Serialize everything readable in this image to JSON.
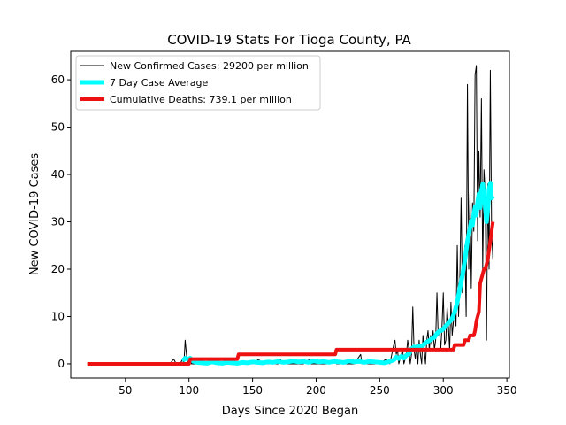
{
  "chart_data": {
    "type": "line",
    "title": "COVID-19 Stats For Tioga County, PA",
    "xlabel": "Days Since 2020 Began",
    "ylabel": "New COVID-19 Cases",
    "xlim": [
      7,
      352
    ],
    "ylim": [
      -3,
      66
    ],
    "xticks": [
      50,
      100,
      150,
      200,
      250,
      300,
      350
    ],
    "yticks": [
      0,
      10,
      20,
      30,
      40,
      50,
      60
    ],
    "grid": false,
    "legend_position": "top-left",
    "series": [
      {
        "name": "New Confirmed Cases: 29200 per million",
        "color": "#000000",
        "line_width": 1,
        "points": [
          [
            20,
            0
          ],
          [
            85,
            0
          ],
          [
            88,
            1
          ],
          [
            90,
            0
          ],
          [
            93,
            0
          ],
          [
            95,
            1
          ],
          [
            96,
            0
          ],
          [
            97,
            5
          ],
          [
            98,
            2
          ],
          [
            99,
            0
          ],
          [
            101,
            1
          ],
          [
            102,
            0
          ],
          [
            110,
            0
          ],
          [
            115,
            0
          ],
          [
            118,
            1
          ],
          [
            120,
            0
          ],
          [
            130,
            0
          ],
          [
            135,
            1
          ],
          [
            136,
            0
          ],
          [
            150,
            0
          ],
          [
            155,
            1
          ],
          [
            156,
            0
          ],
          [
            170,
            0
          ],
          [
            172,
            1
          ],
          [
            173,
            0
          ],
          [
            190,
            0
          ],
          [
            195,
            1
          ],
          [
            196,
            0
          ],
          [
            210,
            0
          ],
          [
            215,
            1
          ],
          [
            216,
            0
          ],
          [
            230,
            0
          ],
          [
            235,
            2
          ],
          [
            236,
            0
          ],
          [
            250,
            0
          ],
          [
            255,
            1
          ],
          [
            258,
            0
          ],
          [
            261,
            4
          ],
          [
            262,
            5
          ],
          [
            263,
            2
          ],
          [
            264,
            3
          ],
          [
            265,
            0
          ],
          [
            266,
            1
          ],
          [
            268,
            3
          ],
          [
            269,
            0
          ],
          [
            271,
            2
          ],
          [
            272,
            5
          ],
          [
            273,
            3
          ],
          [
            274,
            0
          ],
          [
            275,
            2
          ],
          [
            276,
            12
          ],
          [
            277,
            3
          ],
          [
            278,
            1
          ],
          [
            279,
            4
          ],
          [
            280,
            0
          ],
          [
            281,
            5
          ],
          [
            282,
            2
          ],
          [
            283,
            0
          ],
          [
            284,
            6
          ],
          [
            285,
            3
          ],
          [
            286,
            0
          ],
          [
            287,
            5
          ],
          [
            288,
            7
          ],
          [
            289,
            3
          ],
          [
            290,
            6
          ],
          [
            291,
            4
          ],
          [
            292,
            7
          ],
          [
            293,
            3
          ],
          [
            294,
            5
          ],
          [
            295,
            15
          ],
          [
            296,
            6
          ],
          [
            297,
            7
          ],
          [
            298,
            3
          ],
          [
            299,
            8
          ],
          [
            300,
            15
          ],
          [
            301,
            4
          ],
          [
            302,
            5
          ],
          [
            303,
            12
          ],
          [
            304,
            8
          ],
          [
            305,
            3
          ],
          [
            306,
            13
          ],
          [
            307,
            6
          ],
          [
            308,
            9
          ],
          [
            309,
            12
          ],
          [
            310,
            8
          ],
          [
            311,
            25
          ],
          [
            312,
            10
          ],
          [
            313,
            18
          ],
          [
            314,
            35
          ],
          [
            315,
            15
          ],
          [
            316,
            20
          ],
          [
            317,
            25
          ],
          [
            318,
            10
          ],
          [
            319,
            59
          ],
          [
            320,
            20
          ],
          [
            321,
            36
          ],
          [
            322,
            16
          ],
          [
            323,
            34
          ],
          [
            324,
            28
          ],
          [
            325,
            61
          ],
          [
            326,
            63
          ],
          [
            327,
            26
          ],
          [
            328,
            45
          ],
          [
            329,
            31
          ],
          [
            330,
            56
          ],
          [
            331,
            20
          ],
          [
            332,
            41
          ],
          [
            333,
            36
          ],
          [
            334,
            5
          ],
          [
            335,
            38
          ],
          [
            336,
            20
          ],
          [
            337,
            62
          ],
          [
            338,
            28
          ],
          [
            339,
            22
          ]
        ]
      },
      {
        "name": "7 Day Case Average",
        "color": "#00ffff",
        "line_width": 5,
        "points": [
          [
            95,
            0.6
          ],
          [
            97,
            1.2
          ],
          [
            99,
            1.0
          ],
          [
            101,
            1.2
          ],
          [
            103,
            0.6
          ],
          [
            106,
            0.3
          ],
          [
            110,
            0.2
          ],
          [
            114,
            0.1
          ],
          [
            118,
            0.4
          ],
          [
            122,
            0.2
          ],
          [
            126,
            0.1
          ],
          [
            130,
            0.3
          ],
          [
            134,
            0.2
          ],
          [
            138,
            0.1
          ],
          [
            142,
            0.3
          ],
          [
            146,
            0.2
          ],
          [
            150,
            0.4
          ],
          [
            154,
            0.3
          ],
          [
            158,
            0.2
          ],
          [
            162,
            0.4
          ],
          [
            166,
            0.3
          ],
          [
            170,
            0.5
          ],
          [
            174,
            0.3
          ],
          [
            178,
            0.4
          ],
          [
            182,
            0.6
          ],
          [
            186,
            0.4
          ],
          [
            190,
            0.5
          ],
          [
            194,
            0.3
          ],
          [
            198,
            0.6
          ],
          [
            202,
            0.4
          ],
          [
            206,
            0.5
          ],
          [
            210,
            0.3
          ],
          [
            214,
            0.5
          ],
          [
            218,
            0.4
          ],
          [
            222,
            0.3
          ],
          [
            226,
            0.6
          ],
          [
            230,
            0.4
          ],
          [
            234,
            0.5
          ],
          [
            238,
            0.3
          ],
          [
            242,
            0.5
          ],
          [
            246,
            0.4
          ],
          [
            250,
            0.3
          ],
          [
            254,
            0.2
          ],
          [
            258,
            0.5
          ],
          [
            261,
            0.8
          ],
          [
            263,
            1.4
          ],
          [
            265,
            1.1
          ],
          [
            267,
            1.6
          ],
          [
            269,
            1.2
          ],
          [
            271,
            1.8
          ],
          [
            273,
            2.1
          ],
          [
            275,
            3.2
          ],
          [
            277,
            3.6
          ],
          [
            279,
            3.4
          ],
          [
            281,
            3.8
          ],
          [
            283,
            3.5
          ],
          [
            285,
            4.2
          ],
          [
            287,
            4.6
          ],
          [
            289,
            4.9
          ],
          [
            291,
            5.3
          ],
          [
            293,
            5.6
          ],
          [
            295,
            6.4
          ],
          [
            297,
            6.9
          ],
          [
            299,
            7.1
          ],
          [
            301,
            7.7
          ],
          [
            303,
            8.3
          ],
          [
            305,
            8.9
          ],
          [
            307,
            9.6
          ],
          [
            309,
            11.0
          ],
          [
            311,
            13.1
          ],
          [
            313,
            15.9
          ],
          [
            315,
            18.6
          ],
          [
            317,
            22.0
          ],
          [
            319,
            25.9
          ],
          [
            321,
            28.6
          ],
          [
            322,
            30.2
          ],
          [
            323,
            29.3
          ],
          [
            324,
            31.6
          ],
          [
            325,
            33.1
          ],
          [
            326,
            31.4
          ],
          [
            327,
            34.2
          ],
          [
            328,
            35.9
          ],
          [
            329,
            33.0
          ],
          [
            330,
            36.6
          ],
          [
            331,
            38.0
          ],
          [
            332,
            35.1
          ],
          [
            333,
            33.4
          ],
          [
            334,
            30.0
          ],
          [
            335,
            32.6
          ],
          [
            336,
            36.9
          ],
          [
            337,
            38.2
          ],
          [
            338,
            35.0
          ],
          [
            339,
            35.4
          ]
        ]
      },
      {
        "name": "Cumulative Deaths: 739.1 per million",
        "color": "#ee1111",
        "line_width": 4,
        "points": [
          [
            20,
            0
          ],
          [
            100,
            0
          ],
          [
            101,
            1
          ],
          [
            138,
            1
          ],
          [
            139,
            2
          ],
          [
            215,
            2
          ],
          [
            216,
            3
          ],
          [
            308,
            3
          ],
          [
            309,
            4
          ],
          [
            316,
            4
          ],
          [
            317,
            5
          ],
          [
            320,
            5
          ],
          [
            321,
            6
          ],
          [
            324,
            6
          ],
          [
            325,
            7
          ],
          [
            326,
            9
          ],
          [
            327,
            10
          ],
          [
            328,
            11
          ],
          [
            329,
            17
          ],
          [
            330,
            18
          ],
          [
            331,
            19
          ],
          [
            332,
            20
          ],
          [
            333,
            20
          ],
          [
            334,
            21
          ],
          [
            335,
            22
          ],
          [
            336,
            24
          ],
          [
            337,
            26
          ],
          [
            338,
            28
          ],
          [
            339,
            30
          ]
        ]
      }
    ]
  }
}
